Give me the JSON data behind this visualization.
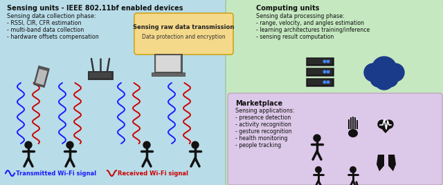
{
  "bg_outer": "#e8e8e8",
  "bg_top_full": "#c5e8c0",
  "bg_left_blue": "#b8dce8",
  "bg_arrow_box": "#f5d98a",
  "bg_marketplace": "#dcc8e8",
  "title_left": "Sensing units - IEEE 802.11bf enabled devices",
  "subtitle_left": "Sensing data collection phase:",
  "bullets_left": [
    "- RSSI, CIR, CFR estimation",
    "- multi-band data collection",
    "- hardware offsets compensation"
  ],
  "title_right": "Computing units",
  "subtitle_right": "Sensing data processing phase:",
  "bullets_right": [
    "- range, velocity, and angles estimation",
    "- learning architectures training/inference",
    "- sensing result computation"
  ],
  "arrow_title": "Sensing raw data transmission",
  "arrow_subtitle": "Data protection and encryption",
  "marketplace_title": "Marketplace",
  "marketplace_subtitle": "Sensing applications:",
  "bullets_marketplace": [
    "- presence detection",
    "- activity recognition",
    "- gesture recognition",
    "- health monitoring",
    "- people tracking"
  ],
  "label_tx": "Transmitted Wi-Fi signal",
  "label_rx": "Received Wi-Fi signal",
  "color_tx": "#1a1aff",
  "color_rx": "#cc0000",
  "color_person": "#111111",
  "color_server": "#1a1a1a",
  "color_cloud": "#1a3a8a"
}
